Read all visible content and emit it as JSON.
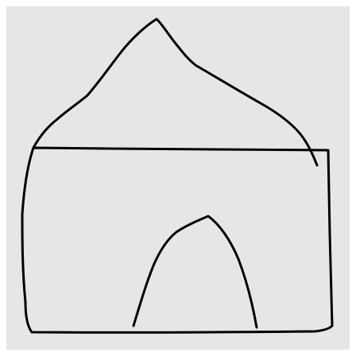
{
  "sketch": {
    "subject": "house-outline",
    "background_color": "#e6e6e6",
    "stroke_color": "#000000"
  }
}
